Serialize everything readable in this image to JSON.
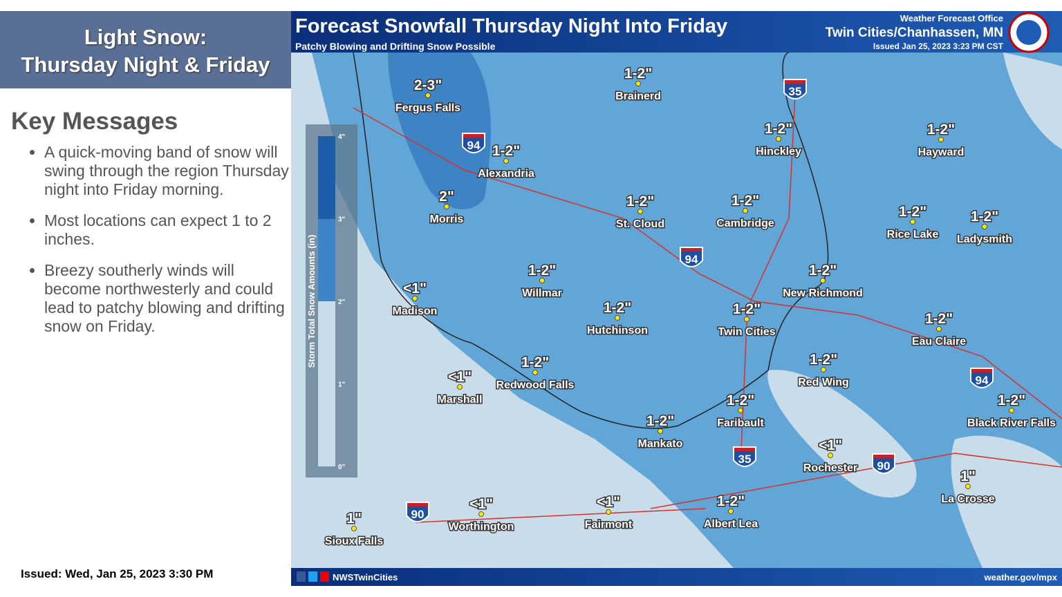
{
  "panel": {
    "title_lines": [
      "Light Snow:",
      "Thursday Night & Friday"
    ],
    "heading": "Key Messages",
    "bullets": [
      "A quick-moving band of snow will swing through the region Thursday night into Friday morning.",
      "Most locations can expect 1 to 2 inches.",
      "Breezy southerly winds will become northwesterly and could lead to patchy blowing and drifting snow on Friday."
    ],
    "issued": "Issued: Wed, Jan 25, 2023 3:30 PM"
  },
  "map": {
    "title": "Forecast Snowfall Thursday Night Into Friday",
    "subtitle": "Patchy Blowing and Drifting Snow Possible",
    "office": [
      "Weather Forecast Office",
      "Twin Cities/Chanhassen, MN",
      "Issued Jan 25, 2023 3:23 PM CST"
    ],
    "legend_title": "Storm Total Snow Amounts (in)",
    "legend_ticks": [
      "4\"",
      "3\"",
      "2\"",
      "1\"",
      "0\""
    ],
    "locations": [
      {
        "name": "Fergus Falls",
        "amount": "2-3\""
      },
      {
        "name": "Brainerd",
        "amount": "1-2\""
      },
      {
        "name": "Alexandria",
        "amount": "1-2\""
      },
      {
        "name": "Morris",
        "amount": "2\""
      },
      {
        "name": "St. Cloud",
        "amount": "1-2\""
      },
      {
        "name": "Cambridge",
        "amount": "1-2\""
      },
      {
        "name": "Hinckley",
        "amount": "1-2\""
      },
      {
        "name": "Hayward",
        "amount": "1-2\""
      },
      {
        "name": "Rice Lake",
        "amount": "1-2\""
      },
      {
        "name": "Ladysmith",
        "amount": "1-2\""
      },
      {
        "name": "Willmar",
        "amount": "1-2\""
      },
      {
        "name": "Madison",
        "amount": "<1\""
      },
      {
        "name": "Hutchinson",
        "amount": "1-2\""
      },
      {
        "name": "Twin Cities",
        "amount": "1-2\""
      },
      {
        "name": "New Richmond",
        "amount": "1-2\""
      },
      {
        "name": "Eau Claire",
        "amount": "1-2\""
      },
      {
        "name": "Redwood Falls",
        "amount": "1-2\""
      },
      {
        "name": "Marshall",
        "amount": "<1\""
      },
      {
        "name": "Red Wing",
        "amount": "1-2\""
      },
      {
        "name": "Faribault",
        "amount": "1-2\""
      },
      {
        "name": "Mankato",
        "amount": "1-2\""
      },
      {
        "name": "Black River Falls",
        "amount": "1-2\""
      },
      {
        "name": "Rochester",
        "amount": "<1\""
      },
      {
        "name": "La Crosse",
        "amount": "1\""
      },
      {
        "name": "Albert Lea",
        "amount": "1-2\""
      },
      {
        "name": "Fairmont",
        "amount": "<1\""
      },
      {
        "name": "Worthington",
        "amount": "<1\""
      },
      {
        "name": "Sioux Falls",
        "amount": "1\""
      }
    ],
    "shields": [
      "94",
      "94",
      "94",
      "35",
      "35",
      "90",
      "90"
    ],
    "footer": [
      "NWSTwinCities",
      "weather.gov/mpx"
    ]
  }
}
